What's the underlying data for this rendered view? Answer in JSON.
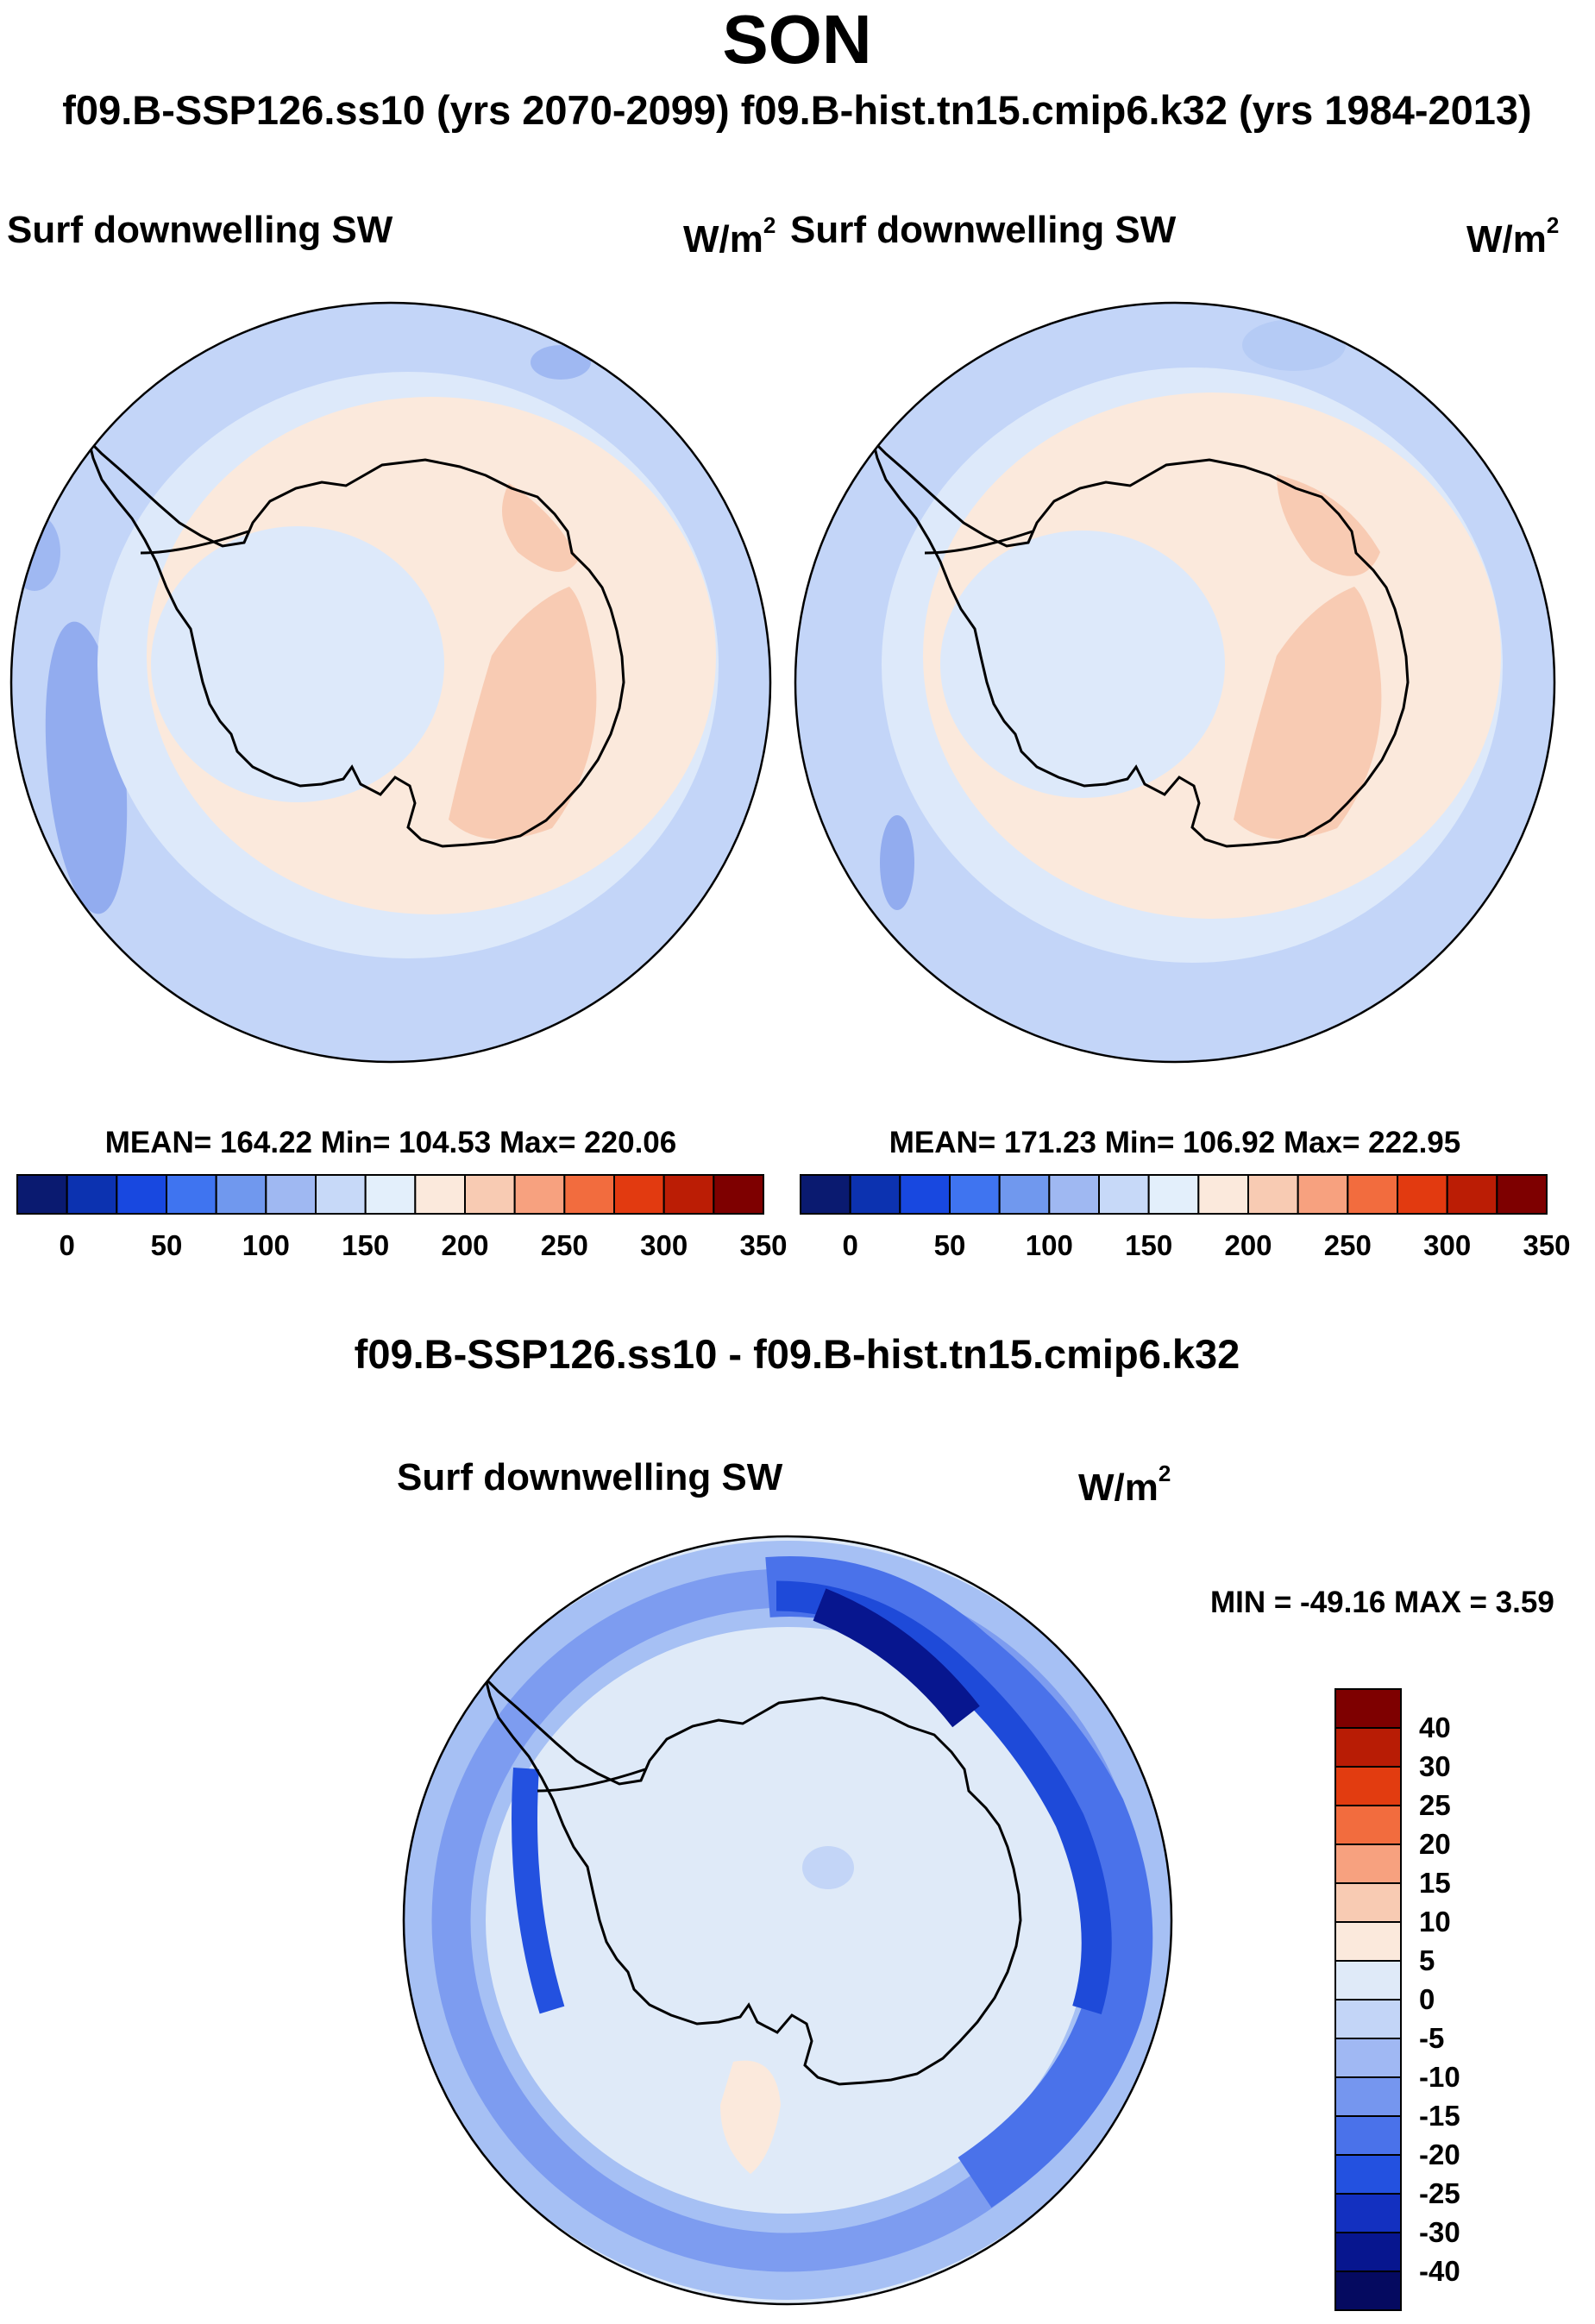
{
  "title": "SON",
  "subtitle": "f09.B-SSP126.ss10 (yrs 2070-2099)  f09.B-hist.tn15.cmip6.k32 (yrs 1984-2013)",
  "panels": [
    {
      "label": "Surf downwelling SW",
      "unit": "W/m",
      "unit_exp": "2",
      "stats": "MEAN= 164.22  Min= 104.53  Max= 220.06",
      "mean": 164.22,
      "min": 104.53,
      "max": 220.06
    },
    {
      "label": "Surf downwelling SW",
      "unit": "W/m",
      "unit_exp": "2",
      "stats": "MEAN= 171.23  Min= 106.92  Max= 222.95",
      "mean": 171.23,
      "min": 106.92,
      "max": 222.95
    }
  ],
  "abs_colorbar": {
    "tick_labels": [
      "0",
      "50",
      "100",
      "150",
      "200",
      "250",
      "300",
      "350"
    ],
    "colors": [
      "#0a1a70",
      "#0c32b0",
      "#1848e0",
      "#3f74f0",
      "#7098ee",
      "#9fb8f2",
      "#c7d9f8",
      "#e3effb",
      "#fbe9dc",
      "#f8cbb3",
      "#f7a17f",
      "#f26c3e",
      "#e23a10",
      "#bb1d05",
      "#7e0000"
    ]
  },
  "diff": {
    "title": "f09.B-SSP126.ss10 - f09.B-hist.tn15.cmip6.k32",
    "label": "Surf downwelling SW",
    "unit": "W/m",
    "unit_exp": "2",
    "minmax": "MIN = -49.16 MAX =   3.59",
    "min": -49.16,
    "max": 3.59
  },
  "diff_colorbar": {
    "tick_labels": [
      "40",
      "30",
      "25",
      "20",
      "15",
      "10",
      "5",
      "0",
      "-5",
      "-10",
      "-15",
      "-20",
      "-25",
      "-30",
      "-40"
    ],
    "colors": [
      "#7e0000",
      "#b81c05",
      "#e23c10",
      "#f26c3e",
      "#f7a17f",
      "#f8cbb3",
      "#fbe9dc",
      "#dfeaf8",
      "#c3d5f7",
      "#a0b8f3",
      "#7596ef",
      "#4a72ea",
      "#2351e0",
      "#1330c0",
      "#07168f",
      "#050a60"
    ]
  },
  "chart_data": [
    {
      "type": "heatmap",
      "title": "Surf downwelling SW",
      "experiment": "f09.B-SSP126.ss10 (yrs 2070-2099)",
      "season": "SON",
      "units": "W/m2",
      "mean": 164.22,
      "min": 104.53,
      "max": 220.06,
      "contour_levels": [
        0,
        25,
        50,
        75,
        100,
        125,
        150,
        175,
        200,
        225,
        250,
        275,
        300,
        325,
        350
      ]
    },
    {
      "type": "heatmap",
      "title": "Surf downwelling SW",
      "experiment": "f09.B-hist.tn15.cmip6.k32 (yrs 1984-2013)",
      "season": "SON",
      "units": "W/m2",
      "mean": 171.23,
      "min": 106.92,
      "max": 222.95,
      "contour_levels": [
        0,
        25,
        50,
        75,
        100,
        125,
        150,
        175,
        200,
        225,
        250,
        275,
        300,
        325,
        350
      ]
    },
    {
      "type": "heatmap",
      "title": "Surf downwelling SW",
      "experiment": "f09.B-SSP126.ss10 - f09.B-hist.tn15.cmip6.k32",
      "season": "SON",
      "units": "W/m2",
      "min": -49.16,
      "max": 3.59,
      "contour_levels": [
        -40,
        -30,
        -25,
        -20,
        -15,
        -10,
        -5,
        0,
        5,
        10,
        15,
        20,
        25,
        30,
        40
      ]
    }
  ]
}
